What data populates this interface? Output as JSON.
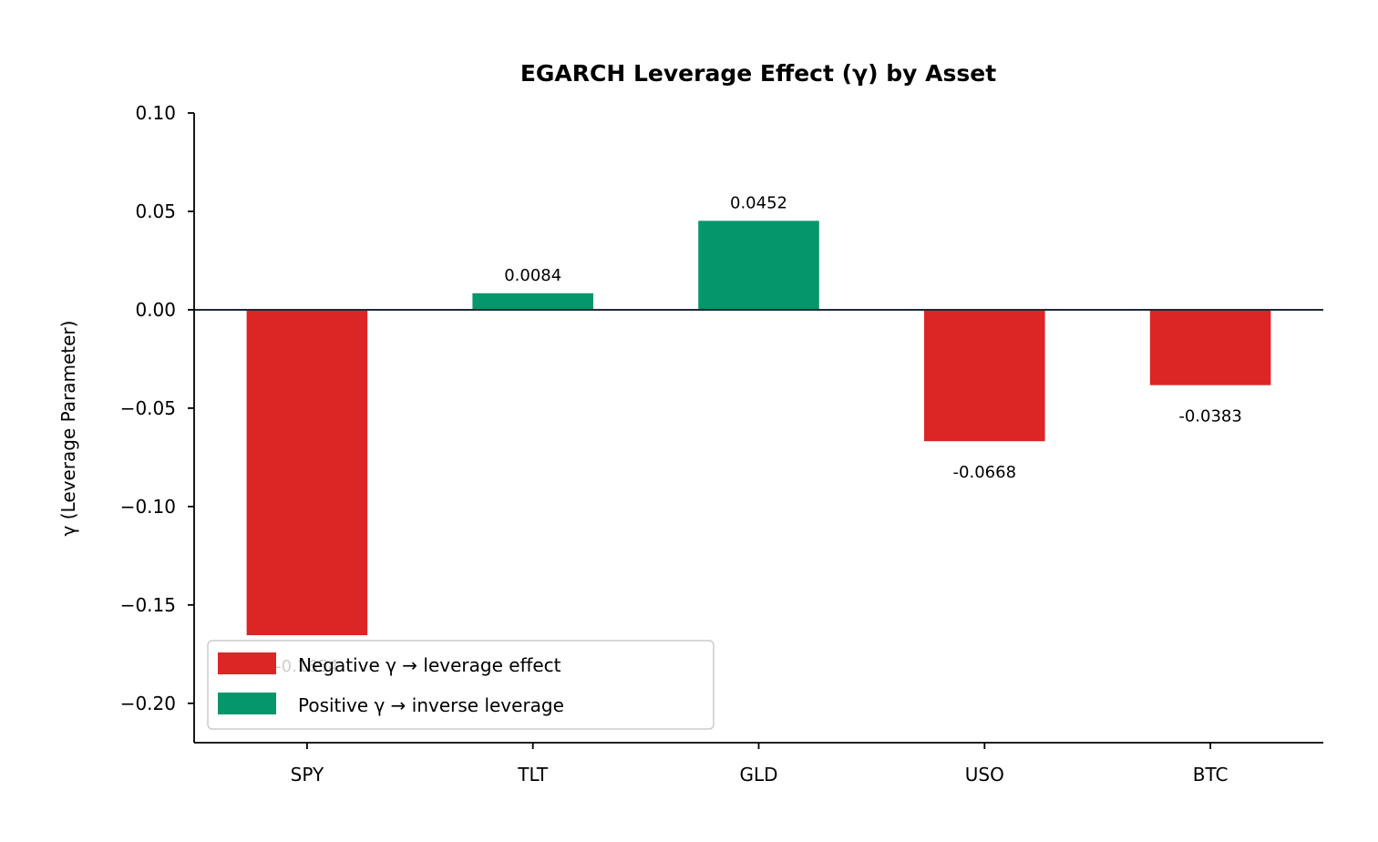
{
  "chart_data": {
    "type": "bar",
    "title": "EGARCH Leverage Effect (γ) by Asset",
    "xlabel": "",
    "ylabel": "γ (Leverage Parameter)",
    "categories": [
      "SPY",
      "TLT",
      "GLD",
      "USO",
      "BTC"
    ],
    "values": [
      -0.1654,
      0.0084,
      0.0452,
      -0.0668,
      -0.0383
    ],
    "value_labels": [
      "-0.1654",
      "0.0084",
      "0.0452",
      "-0.0668",
      "-0.0383"
    ],
    "ylim": [
      -0.22,
      0.1
    ],
    "yticks": [
      0.1,
      0.05,
      0.0,
      -0.05,
      -0.1,
      -0.15,
      -0.2
    ],
    "ytick_labels": [
      "0.10",
      "0.05",
      "0.00",
      "−0.05",
      "−0.10",
      "−0.15",
      "−0.20"
    ],
    "grid": false,
    "zero_line": true,
    "colors": {
      "negative": "#dc2626",
      "positive": "#059669",
      "zero_line": "#1f2937",
      "axis": "#000000",
      "legend_border": "#cccccc"
    },
    "legend": {
      "placement": "lower-left",
      "entries": [
        {
          "label": "Negative γ → leverage effect",
          "color": "#dc2626"
        },
        {
          "label": "Positive γ → inverse leverage",
          "color": "#059669"
        }
      ]
    }
  }
}
